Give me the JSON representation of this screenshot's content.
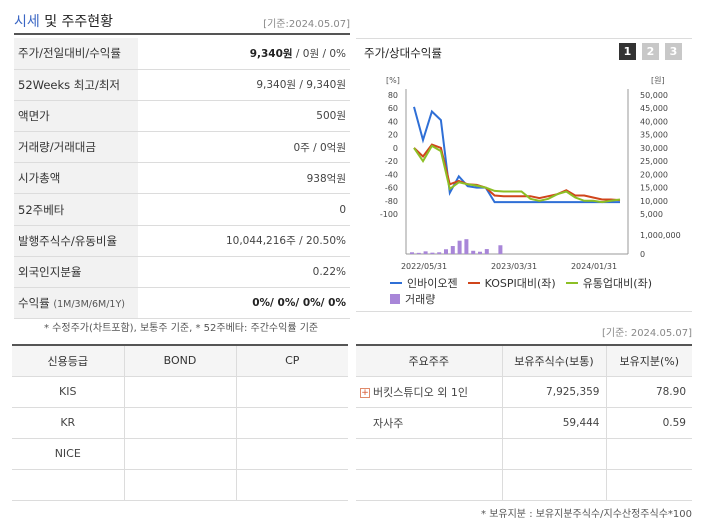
{
  "header": {
    "title_main": "시세",
    "title_rest": " 및 주주현황",
    "date": "[기준:2024.05.07]"
  },
  "info": [
    {
      "label": "주가/전일대비/수익률",
      "value_bold": "9,340원",
      "value_rest": " / 0원 / 0%"
    },
    {
      "label": "52Weeks 최고/최저",
      "value": "9,340원 / 9,340원"
    },
    {
      "label": "액면가",
      "value": "500원"
    },
    {
      "label": "거래량/거래대금",
      "value": "0주 / 0억원"
    },
    {
      "label": "시가총액",
      "value": "938억원"
    },
    {
      "label": "52주베타",
      "value": "0"
    },
    {
      "label": "발행주식수/유동비율",
      "value": "10,044,216주 / 20.50%"
    },
    {
      "label": "외국인지분율",
      "value": "0.22%"
    },
    {
      "label": "수익률",
      "label_small": "(1M/3M/6M/1Y)",
      "value_bold": "0%/ 0%/ 0%/ 0%"
    }
  ],
  "note1": "* 수정주가(차트포함), 보통주 기준, * 52주베타: 주간수익률 기준",
  "chart_panel": {
    "title": "주가/상대수익률",
    "tabs": [
      "1",
      "2",
      "3"
    ],
    "active_tab": 0
  },
  "chart_data": {
    "type": "line",
    "left_unit": "[%]",
    "right_unit": "[원]",
    "y_left_ticks": [
      "80",
      "60",
      "40",
      "20",
      "0",
      "-20",
      "-40",
      "-60",
      "-80",
      "-100"
    ],
    "y_right_ticks": [
      "50,000",
      "45,000",
      "40,000",
      "35,000",
      "30,000",
      "25,000",
      "20,000",
      "15,000",
      "10,000",
      "5,000"
    ],
    "volume_tick": "1,000,000",
    "volume_zero": "0",
    "x_ticks": [
      "2022/05/31",
      "2023/03/31",
      "2024/01/31"
    ],
    "ylim_left": [
      -100,
      80
    ],
    "series": [
      {
        "name": "인바이오젠",
        "color": "#2f6fd6",
        "values": [
          62,
          12,
          55,
          42,
          -68,
          -43,
          -58,
          -60,
          -60,
          -82,
          -82,
          -82,
          -82,
          -82,
          -82,
          -82,
          -82,
          -82,
          -82,
          -82,
          -82,
          -82,
          -82,
          -82
        ]
      },
      {
        "name": "KOSPI대비(좌)",
        "color": "#d0451b",
        "values": [
          0,
          -13,
          5,
          0,
          -55,
          -50,
          -55,
          -56,
          -60,
          -72,
          -73,
          -73,
          -73,
          -73,
          -76,
          -73,
          -70,
          -64,
          -72,
          -72,
          -75,
          -78,
          -78,
          -79
        ]
      },
      {
        "name": "유통업대비(좌)",
        "color": "#8cbf25",
        "values": [
          0,
          -20,
          3,
          -5,
          -62,
          -52,
          -55,
          -57,
          -60,
          -65,
          -66,
          -66,
          -66,
          -77,
          -80,
          -77,
          -70,
          -66,
          -75,
          -80,
          -80,
          -82,
          -80,
          -78
        ]
      }
    ],
    "volume": {
      "name": "거래량",
      "color": "#a886d8",
      "values": [
        90000,
        60000,
        140000,
        70000,
        90000,
        250000,
        420000,
        700000,
        780000,
        170000,
        120000,
        260000,
        0,
        460000
      ]
    }
  },
  "date2": "[기준: 2024.05.07]",
  "credit": {
    "headers": [
      "신용등급",
      "BOND",
      "CP"
    ],
    "rows": [
      [
        "KIS",
        "",
        ""
      ],
      [
        "KR",
        "",
        ""
      ],
      [
        "NICE",
        "",
        ""
      ],
      [
        "",
        "",
        ""
      ]
    ]
  },
  "holders": {
    "headers": [
      "주요주주",
      "보유주식수(보통)",
      "보유지분(%)"
    ],
    "rows": [
      {
        "name": "버킷스튜디오 외 1인",
        "expand": true,
        "shares": "7,925,359",
        "pct": "78.90"
      },
      {
        "name": "자사주",
        "expand": false,
        "shares": "59,444",
        "pct": "0.59"
      },
      {
        "name": "",
        "shares": "",
        "pct": ""
      },
      {
        "name": "",
        "shares": "",
        "pct": ""
      }
    ]
  },
  "note2": "* 보유지분 : 보유지분주식수/지수산정주식수*100"
}
